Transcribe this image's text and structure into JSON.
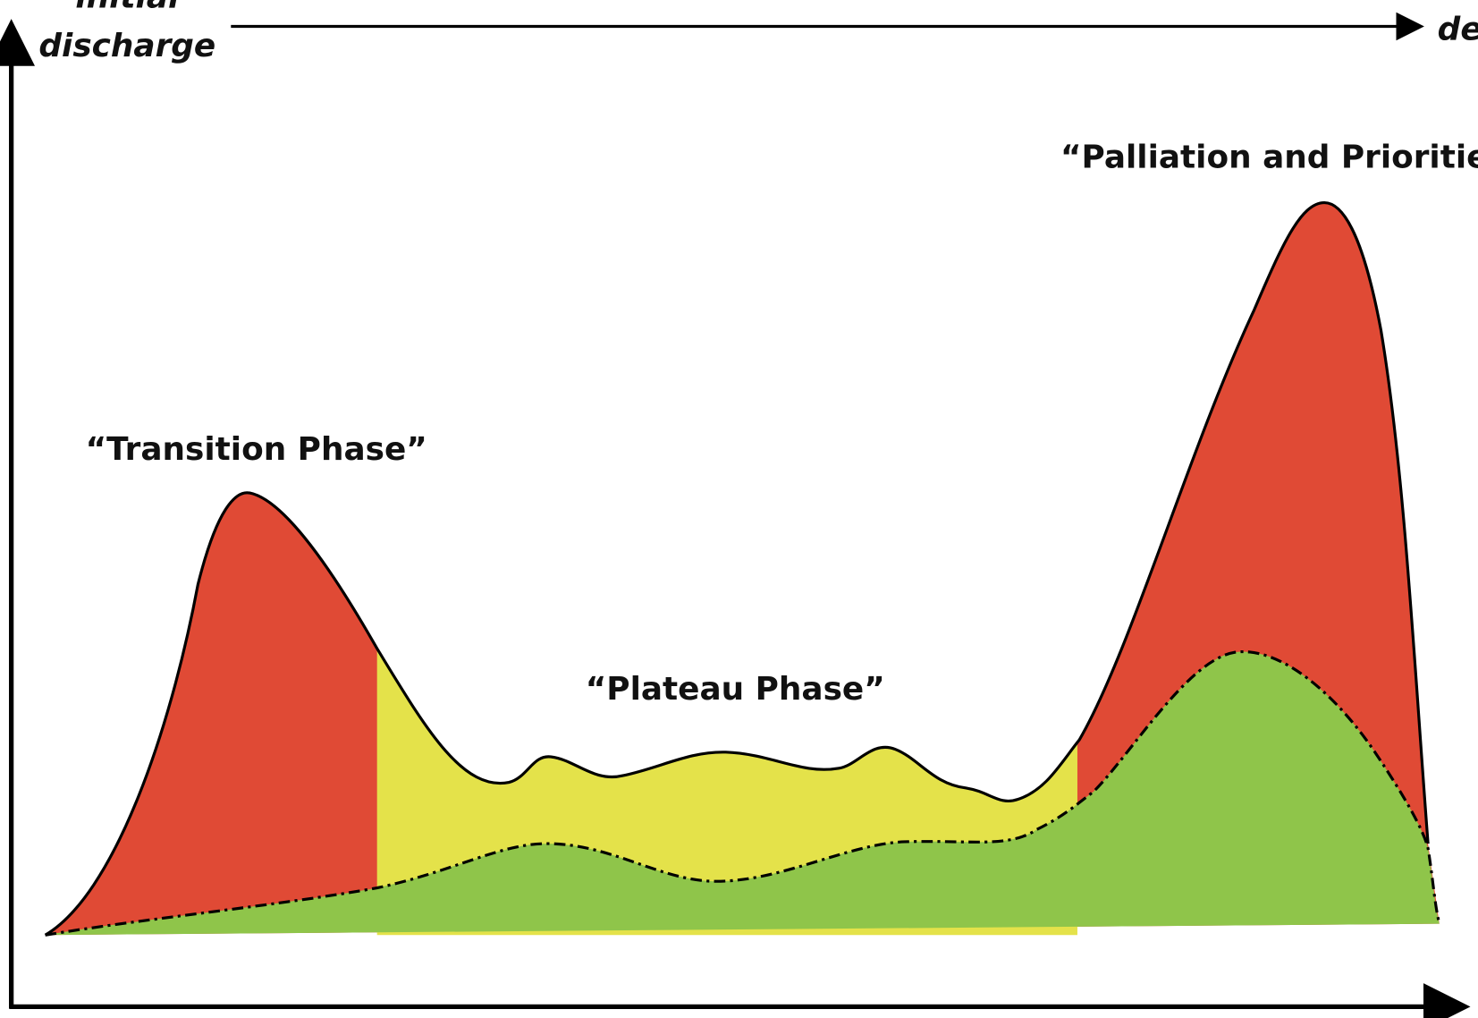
{
  "timeline": {
    "start": [
      "initial",
      "discharge"
    ],
    "end": "de"
  },
  "phases": [
    {
      "label": "“Transition Phase”"
    },
    {
      "label": "“Plateau Phase”"
    },
    {
      "label": "“Palliation and Prioritie"
    }
  ]
}
